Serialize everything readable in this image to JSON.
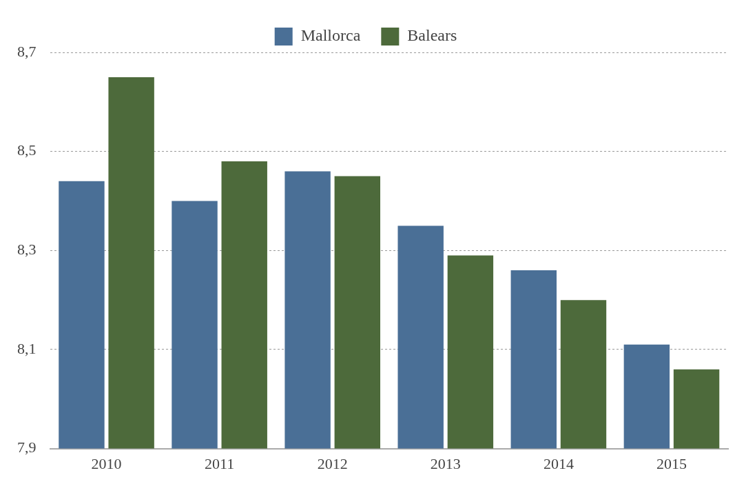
{
  "chart_data": {
    "type": "bar",
    "categories": [
      "2010",
      "2011",
      "2012",
      "2013",
      "2014",
      "2015"
    ],
    "series": [
      {
        "name": "Mallorca",
        "color": "#4a6f96",
        "values": [
          8.44,
          8.4,
          8.46,
          8.35,
          8.26,
          8.11
        ]
      },
      {
        "name": "Balears",
        "color": "#4d6a3b",
        "values": [
          8.65,
          8.48,
          8.45,
          8.29,
          8.2,
          8.06
        ]
      }
    ],
    "ylim": [
      7.9,
      8.7
    ],
    "yticks": [
      {
        "value": 7.9,
        "label": "7,9"
      },
      {
        "value": 8.1,
        "label": "8,1"
      },
      {
        "value": 8.3,
        "label": "8,3"
      },
      {
        "value": 8.5,
        "label": "8,5"
      },
      {
        "value": 8.7,
        "label": "8,7"
      }
    ],
    "grid": "y",
    "legend": "top"
  }
}
